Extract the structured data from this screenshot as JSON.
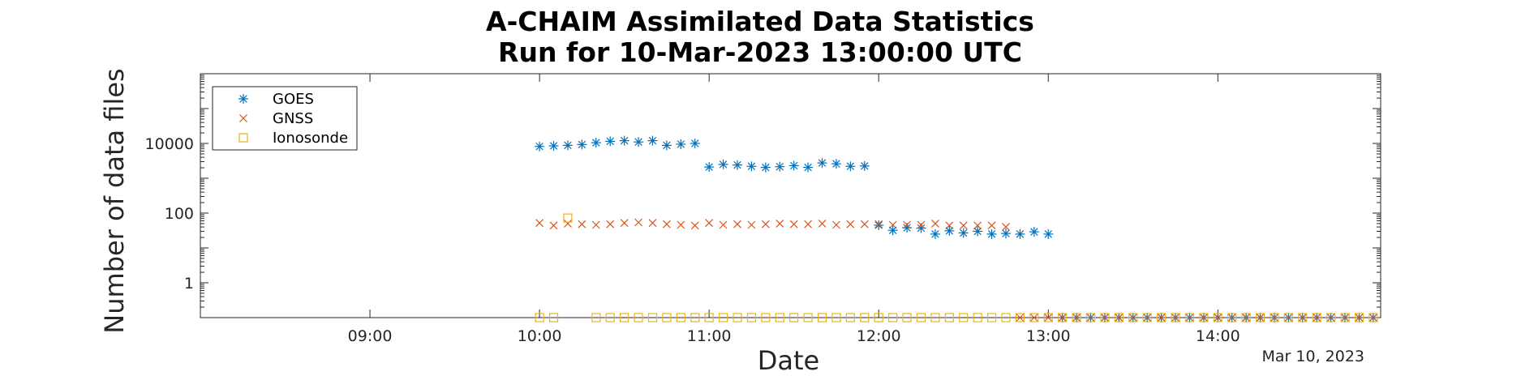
{
  "chart_data": {
    "type": "scatter",
    "title": [
      "A-CHAIM Assimilated Data Statistics",
      "Run for 10-Mar-2023 13:00:00 UTC"
    ],
    "xlabel": "Date",
    "ylabel": "Number of data files",
    "x_tick_labels": [
      "09:00",
      "10:00",
      "11:00",
      "12:00",
      "13:00",
      "14:00"
    ],
    "x_ticks_hours": [
      9,
      10,
      11,
      12,
      13,
      14
    ],
    "x_range_hours": [
      8.0,
      14.96
    ],
    "date_label": "Mar 10, 2023",
    "y_scale": "log",
    "y_range": [
      0.1,
      1000000
    ],
    "y_tick_values": [
      1,
      100,
      10000
    ],
    "y_tick_labels": [
      "1",
      "100",
      "10000"
    ],
    "legend_position": "top-left",
    "grid": false,
    "series": [
      {
        "name": "GOES",
        "marker": "asterisk",
        "color": "#0072BD",
        "x": [
          "10:00",
          "10:05",
          "10:10",
          "10:15",
          "10:20",
          "10:25",
          "10:30",
          "10:35",
          "10:40",
          "10:45",
          "10:50",
          "10:55",
          "11:00",
          "11:05",
          "11:10",
          "11:15",
          "11:20",
          "11:25",
          "11:30",
          "11:35",
          "11:40",
          "11:45",
          "11:50",
          "11:55",
          "12:00",
          "12:05",
          "12:10",
          "12:15",
          "12:20",
          "12:25",
          "12:30",
          "12:35",
          "12:40",
          "12:45",
          "12:50",
          "12:55",
          "13:00",
          "13:05",
          "13:10",
          "13:15",
          "13:20",
          "13:25",
          "13:30",
          "13:35",
          "13:40",
          "13:45",
          "13:50",
          "13:55",
          "14:00",
          "14:05",
          "14:10",
          "14:15",
          "14:20",
          "14:25",
          "14:30",
          "14:35",
          "14:40",
          "14:45",
          "14:50",
          "14:55"
        ],
        "y": [
          8200,
          8500,
          8800,
          9300,
          10500,
          11500,
          12000,
          11000,
          12000,
          8800,
          9500,
          10000,
          2100,
          2500,
          2400,
          2200,
          2050,
          2150,
          2300,
          2050,
          2750,
          2600,
          2200,
          2250,
          45,
          32,
          38,
          37,
          25,
          31,
          27,
          30,
          25,
          26,
          25,
          29,
          25,
          0.1,
          0.1,
          0.1,
          0.1,
          0.1,
          0.1,
          0.1,
          0.1,
          0.1,
          0.1,
          0.1,
          0.1,
          0.1,
          0.1,
          0.1,
          0.1,
          0.1,
          0.1,
          0.1,
          0.1,
          0.1,
          0.1,
          0.1
        ]
      },
      {
        "name": "GNSS",
        "marker": "x",
        "color": "#D95319",
        "x": [
          "10:00",
          "10:05",
          "10:10",
          "10:15",
          "10:20",
          "10:25",
          "10:30",
          "10:35",
          "10:40",
          "10:45",
          "10:50",
          "10:55",
          "11:00",
          "11:05",
          "11:10",
          "11:15",
          "11:20",
          "11:25",
          "11:30",
          "11:35",
          "11:40",
          "11:45",
          "11:50",
          "11:55",
          "12:00",
          "12:05",
          "12:10",
          "12:15",
          "12:20",
          "12:25",
          "12:30",
          "12:35",
          "12:40",
          "12:45",
          "12:50",
          "12:55",
          "13:00",
          "13:05",
          "13:10",
          "13:15",
          "13:20",
          "13:25",
          "13:30",
          "13:35",
          "13:40",
          "13:45",
          "13:50",
          "13:55",
          "14:00",
          "14:05",
          "14:10",
          "14:15",
          "14:20",
          "14:25",
          "14:30",
          "14:35",
          "14:40",
          "14:45",
          "14:50",
          "14:55"
        ],
        "y": [
          52,
          44,
          50,
          48,
          46,
          48,
          52,
          54,
          52,
          48,
          46,
          44,
          52,
          46,
          48,
          46,
          48,
          50,
          48,
          48,
          50,
          46,
          48,
          48,
          48,
          46,
          46,
          46,
          50,
          44,
          44,
          44,
          44,
          40,
          0.1,
          0.1,
          0.1,
          0.1,
          0.1,
          0.1,
          0.1,
          0.1,
          0.1,
          0.1,
          0.1,
          0.1,
          0.1,
          0.1,
          0.1,
          0.1,
          0.1,
          0.1,
          0.1,
          0.1,
          0.1,
          0.1,
          0.1,
          0.1,
          0.1,
          0.1
        ]
      },
      {
        "name": "Ionosonde",
        "marker": "square",
        "color": "#EDB120",
        "x": [
          "10:00",
          "10:05",
          "10:10",
          "10:20",
          "10:25",
          "10:30",
          "10:35",
          "10:40",
          "10:45",
          "10:50",
          "10:55",
          "11:00",
          "11:05",
          "11:10",
          "11:15",
          "11:20",
          "11:25",
          "11:30",
          "11:35",
          "11:40",
          "11:45",
          "11:50",
          "11:55",
          "12:00",
          "12:05",
          "12:10",
          "12:15",
          "12:20",
          "12:25",
          "12:30",
          "12:35",
          "12:40",
          "12:45",
          "12:50",
          "12:55",
          "13:00",
          "13:05",
          "13:10",
          "13:15",
          "13:20",
          "13:25",
          "13:30",
          "13:35",
          "13:40",
          "13:45",
          "13:50",
          "13:55",
          "14:00",
          "14:05",
          "14:10",
          "14:15",
          "14:20",
          "14:25",
          "14:30",
          "14:35",
          "14:40",
          "14:45",
          "14:50",
          "14:55"
        ],
        "y": [
          0.1,
          0.1,
          72,
          0.1,
          0.1,
          0.1,
          0.1,
          0.1,
          0.1,
          0.1,
          0.1,
          0.1,
          0.1,
          0.1,
          0.1,
          0.1,
          0.1,
          0.1,
          0.1,
          0.1,
          0.1,
          0.1,
          0.1,
          0.1,
          0.1,
          0.1,
          0.1,
          0.1,
          0.1,
          0.1,
          0.1,
          0.1,
          0.1,
          0.1,
          0.1,
          0.1,
          0.1,
          0.1,
          0.1,
          0.1,
          0.1,
          0.1,
          0.1,
          0.1,
          0.1,
          0.1,
          0.1,
          0.1,
          0.1,
          0.1,
          0.1,
          0.1,
          0.1,
          0.1,
          0.1,
          0.1,
          0.1,
          0.1,
          0.1
        ]
      }
    ]
  }
}
